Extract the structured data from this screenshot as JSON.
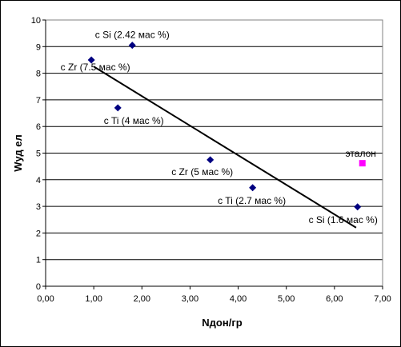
{
  "chart_data": {
    "type": "scatter",
    "xlabel": "Nдон/гр",
    "ylabel": "Wуд ел",
    "xlim": [
      0,
      7
    ],
    "ylim": [
      0,
      10
    ],
    "x_ticks": [
      "0,00",
      "1,00",
      "2,00",
      "3,00",
      "4,00",
      "5,00",
      "6,00",
      "7,00"
    ],
    "y_ticks": [
      "0",
      "1",
      "2",
      "3",
      "4",
      "5",
      "6",
      "7",
      "8",
      "9",
      "10"
    ],
    "grid": "horizontal",
    "series": [
      {
        "color": "#000080",
        "marker": "diamond",
        "points": [
          {
            "x": 1.8,
            "y": 9.05,
            "label": "c Si (2.42 мас %)"
          },
          {
            "x": 0.95,
            "y": 8.5,
            "label": "c Zr (7.5 мас %)"
          },
          {
            "x": 1.5,
            "y": 6.7,
            "label": "c Ti (4 мас %)"
          },
          {
            "x": 3.42,
            "y": 4.75,
            "label": "c Zr (5 мас %)"
          },
          {
            "x": 4.3,
            "y": 3.7,
            "label": "c Ti (2.7 мас %)"
          },
          {
            "x": 6.48,
            "y": 2.98,
            "label": "c Si (1.6 мас %)"
          }
        ]
      },
      {
        "color": "#ff00ff",
        "marker": "square",
        "points": [
          {
            "x": 6.58,
            "y": 4.62,
            "label": "эталон"
          }
        ]
      }
    ],
    "trendline": {
      "x": [
        1.0,
        6.45
      ],
      "y": [
        8.25,
        2.2
      ],
      "color": "#000000"
    }
  }
}
